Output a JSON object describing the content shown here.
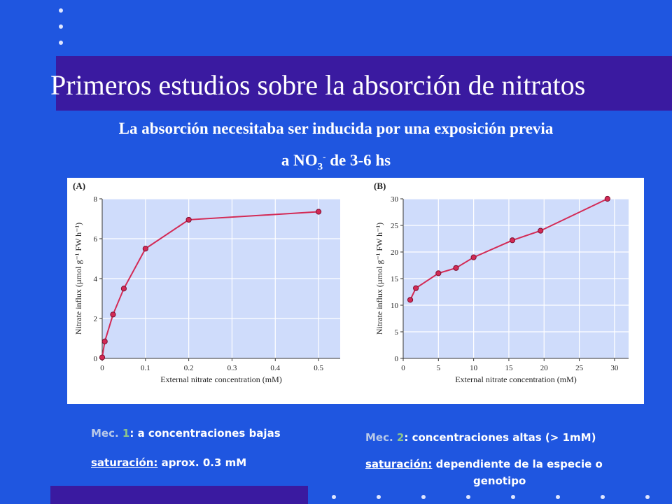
{
  "slide": {
    "title": "Primeros estudios sobre la absorción de nitratos",
    "subtitle_line1": "La absorción necesitaba ser inducida por una exposición previa",
    "subtitle_line2_pre": "a NO",
    "subtitle_line2_sub": "3",
    "subtitle_line2_sup": "-",
    "subtitle_line2_post": " de 3-6 hs"
  },
  "notes": {
    "mec1_prefix": "Mec. ",
    "mec1_num": "1",
    "mec1_text": ": a concentraciones bajas",
    "mec1_sat_label": "saturación:",
    "mec1_sat_value": " aprox. 0.3 mM",
    "mec2_prefix": "Mec. ",
    "mec2_num": "2",
    "mec2_text": ": concentraciones altas (> 1mM)",
    "mec2_sat_label": "saturación:",
    "mec2_sat_value": " dependiente de la especie o",
    "mec2_sat_value2": "genotipo"
  },
  "colors": {
    "background": "#1f56e0",
    "title_band": "#3a1aa0",
    "plot_area": "#cfdcfb",
    "series": "#d32a55"
  },
  "chart_data": [
    {
      "type": "line",
      "panel_label": "(A)",
      "xlabel": "External nitrate concentration (mM)",
      "ylabel": "Nitrate influx (µmol g⁻¹ FW h⁻¹)",
      "xlim": [
        0,
        0.55
      ],
      "ylim": [
        0,
        8
      ],
      "xticks": [
        0,
        0.1,
        0.2,
        0.3,
        0.4,
        0.5
      ],
      "xticklabels": [
        "0",
        "0.1",
        "0.2",
        "0.3",
        "0.4",
        "0.5"
      ],
      "yticks": [
        0,
        2,
        4,
        6,
        8
      ],
      "yticklabels": [
        "0",
        "2",
        "4",
        "6",
        "8"
      ],
      "grid": true,
      "series": [
        {
          "x": [
            0,
            0.006,
            0.025,
            0.05,
            0.1,
            0.2,
            0.5
          ],
          "y": [
            0.05,
            0.85,
            2.2,
            3.5,
            5.5,
            6.95,
            7.35
          ]
        }
      ]
    },
    {
      "type": "line",
      "panel_label": "(B)",
      "xlabel": "External nitrate concentration (mM)",
      "ylabel": "Nitrate influx (µmol g⁻¹ FW h⁻¹)",
      "xlim": [
        0,
        32
      ],
      "ylim": [
        0,
        30
      ],
      "xticks": [
        0,
        5,
        10,
        15,
        20,
        25,
        30
      ],
      "xticklabels": [
        "0",
        "5",
        "10",
        "15",
        "20",
        "25",
        "30"
      ],
      "yticks": [
        0,
        5,
        10,
        15,
        20,
        25,
        30
      ],
      "yticklabels": [
        "0",
        "5",
        "10",
        "15",
        "20",
        "25",
        "30"
      ],
      "grid": true,
      "series": [
        {
          "x": [
            1,
            1.8,
            5,
            7.5,
            10,
            15.5,
            19.5,
            29
          ],
          "y": [
            11,
            13.2,
            16,
            17,
            19,
            22.2,
            24,
            30
          ]
        }
      ]
    }
  ]
}
